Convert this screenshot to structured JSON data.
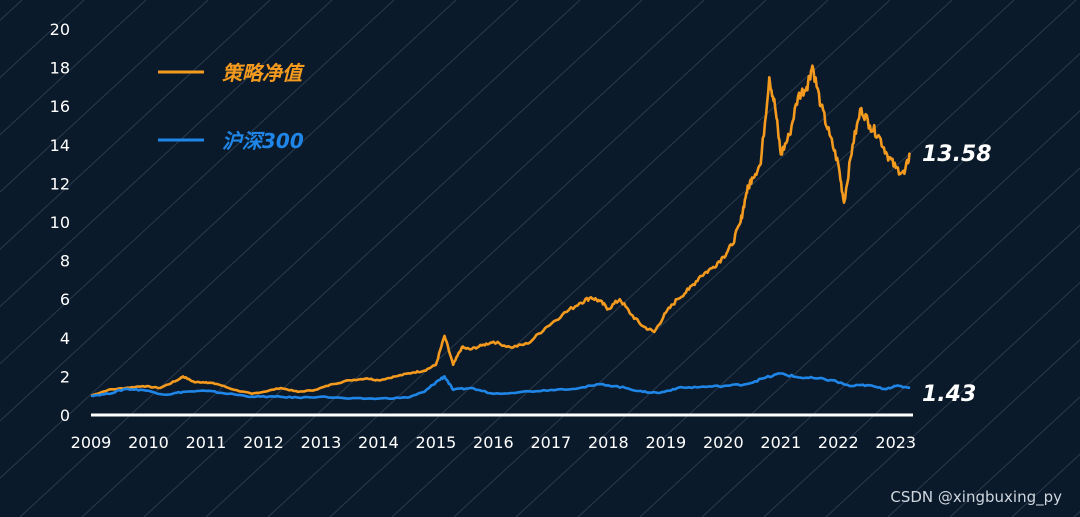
{
  "colors": {
    "background": "#0b1a2a",
    "stripe": "#2a3a4c",
    "axis": "#ffffff",
    "text": "#ffffff",
    "strategy": "#f39a1f",
    "index": "#1f86e8",
    "watermark": "#cfd6de"
  },
  "chart_data": {
    "type": "line",
    "title": "",
    "xlabel": "",
    "ylabel": "",
    "ylim": [
      0,
      20
    ],
    "xlim": [
      2009,
      2023.3
    ],
    "grid": false,
    "legend_position": "top-left",
    "y_ticks": [
      "0",
      "2",
      "4",
      "6",
      "8",
      "10",
      "12",
      "14",
      "16",
      "18",
      "20"
    ],
    "x_ticks": [
      "2009",
      "2010",
      "2011",
      "2012",
      "2013",
      "2014",
      "2015",
      "2016",
      "2017",
      "2018",
      "2019",
      "2020",
      "2021",
      "2022",
      "2023"
    ],
    "series": [
      {
        "name": "策略净值",
        "end_label": "13.58",
        "x": [
          2009.0,
          2009.3,
          2009.6,
          2009.9,
          2010.2,
          2010.5,
          2010.6,
          2010.8,
          2011.0,
          2011.2,
          2011.5,
          2011.8,
          2012.0,
          2012.3,
          2012.6,
          2012.9,
          2013.2,
          2013.5,
          2013.8,
          2014.0,
          2014.3,
          2014.6,
          2014.8,
          2015.0,
          2015.15,
          2015.3,
          2015.45,
          2015.6,
          2015.8,
          2016.0,
          2016.3,
          2016.6,
          2016.9,
          2017.2,
          2017.5,
          2017.7,
          2017.85,
          2018.0,
          2018.2,
          2018.4,
          2018.6,
          2018.8,
          2019.0,
          2019.2,
          2019.4,
          2019.6,
          2019.8,
          2020.0,
          2020.15,
          2020.3,
          2020.4,
          2020.5,
          2020.65,
          2020.8,
          2020.9,
          2021.0,
          2021.15,
          2021.3,
          2021.45,
          2021.55,
          2021.7,
          2021.85,
          2022.0,
          2022.1,
          2022.25,
          2022.4,
          2022.55,
          2022.7,
          2022.85,
          2023.0,
          2023.15,
          2023.25
        ],
        "y": [
          1.0,
          1.3,
          1.4,
          1.5,
          1.4,
          1.8,
          2.0,
          1.7,
          1.7,
          1.6,
          1.3,
          1.1,
          1.2,
          1.4,
          1.2,
          1.3,
          1.6,
          1.8,
          1.9,
          1.8,
          2.0,
          2.2,
          2.3,
          2.6,
          4.1,
          2.6,
          3.5,
          3.4,
          3.6,
          3.8,
          3.5,
          3.7,
          4.5,
          5.2,
          5.8,
          6.1,
          5.9,
          5.5,
          6.0,
          5.2,
          4.6,
          4.3,
          5.3,
          6.0,
          6.5,
          7.2,
          7.6,
          8.2,
          8.8,
          10.0,
          11.5,
          12.3,
          13.0,
          17.5,
          16.0,
          13.5,
          14.5,
          16.5,
          17.0,
          18.1,
          16.0,
          14.5,
          13.0,
          11.0,
          14.0,
          15.9,
          15.0,
          14.5,
          13.5,
          12.8,
          12.5,
          13.58
        ]
      },
      {
        "name": "沪深300",
        "end_label": "1.43",
        "x": [
          2009.0,
          2009.3,
          2009.6,
          2009.9,
          2010.3,
          2010.6,
          2011.0,
          2011.4,
          2011.8,
          2012.2,
          2012.6,
          2013.0,
          2013.5,
          2014.0,
          2014.5,
          2014.8,
          2015.0,
          2015.15,
          2015.3,
          2015.6,
          2016.0,
          2016.5,
          2017.0,
          2017.5,
          2017.9,
          2018.3,
          2018.6,
          2018.9,
          2019.2,
          2019.6,
          2020.0,
          2020.4,
          2020.7,
          2021.0,
          2021.3,
          2021.6,
          2021.9,
          2022.2,
          2022.5,
          2022.8,
          2023.0,
          2023.25
        ],
        "y": [
          1.0,
          1.1,
          1.35,
          1.3,
          1.05,
          1.2,
          1.25,
          1.1,
          0.95,
          0.95,
          0.9,
          0.95,
          0.85,
          0.85,
          0.9,
          1.2,
          1.7,
          2.0,
          1.3,
          1.4,
          1.1,
          1.2,
          1.3,
          1.4,
          1.6,
          1.4,
          1.2,
          1.15,
          1.4,
          1.45,
          1.5,
          1.6,
          1.9,
          2.15,
          1.95,
          1.9,
          1.8,
          1.5,
          1.55,
          1.35,
          1.5,
          1.43
        ]
      }
    ]
  },
  "watermark": "CSDN @xingbuxing_py"
}
